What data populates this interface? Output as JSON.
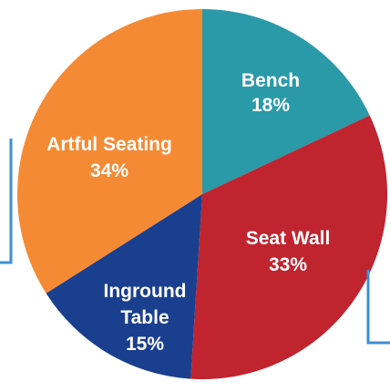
{
  "chart_data": {
    "type": "pie",
    "start_angle_deg": 0,
    "direction": "clockwise",
    "slices": [
      {
        "label": "Bench",
        "percent_label": "18%",
        "value": 18,
        "color": "#2a9aa8"
      },
      {
        "label": "Seat Wall",
        "percent_label": "33%",
        "value": 33,
        "color": "#c0242f"
      },
      {
        "label": "Inground Table",
        "percent_label": "15%",
        "value": 15,
        "color": "#1b3f8f"
      },
      {
        "label": "Artful Seating",
        "percent_label": "34%",
        "value": 34,
        "color": "#f58a34"
      }
    ],
    "title": "",
    "legend": "none",
    "accent_bracket_color": "#3e8fd0"
  }
}
